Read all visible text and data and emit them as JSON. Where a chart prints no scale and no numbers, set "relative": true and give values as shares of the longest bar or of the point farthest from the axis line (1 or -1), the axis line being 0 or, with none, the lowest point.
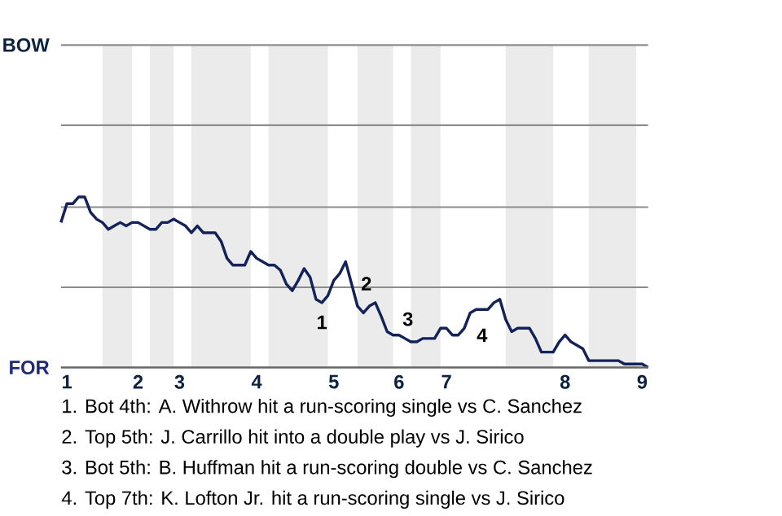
{
  "chart_data": {
    "type": "line",
    "categories": [
      null,
      "1",
      null,
      null,
      null,
      null,
      null,
      null,
      null,
      null,
      null,
      null,
      null,
      "2",
      null,
      null,
      null,
      null,
      null,
      null,
      "3",
      null,
      null,
      null,
      null,
      null,
      null,
      null,
      null,
      null,
      null,
      null,
      null,
      "4",
      null,
      null,
      null,
      null,
      null,
      null,
      null,
      null,
      null,
      null,
      null,
      null,
      "5",
      null,
      null,
      null,
      null,
      null,
      null,
      null,
      null,
      null,
      null,
      "6",
      null,
      null,
      null,
      null,
      null,
      null,
      null,
      "7",
      null,
      null,
      null,
      null,
      null,
      null,
      null,
      null,
      null,
      null,
      null,
      null,
      null,
      null,
      null,
      null,
      null,
      null,
      null,
      "8",
      null,
      null,
      null,
      null,
      null,
      null,
      null,
      null,
      null,
      null,
      null,
      null,
      "9",
      null
    ],
    "series": [
      {
        "color": "#14225a",
        "values": [
          0.85,
          0.96,
          0.96,
          1,
          1,
          0.91,
          0.87,
          0.85,
          0.81,
          0.83,
          0.85,
          0.83,
          0.85,
          0.85,
          0.83,
          0.81,
          0.81,
          0.85,
          0.85,
          0.87,
          0.85,
          0.83,
          0.79,
          0.83,
          0.79,
          0.79,
          0.79,
          0.74,
          0.64,
          0.6,
          0.6,
          0.6,
          0.68,
          0.64,
          0.62,
          0.6,
          0.6,
          0.57,
          0.49,
          0.45,
          0.51,
          0.58,
          0.53,
          0.4,
          0.38,
          0.42,
          0.51,
          0.55,
          0.62,
          0.49,
          0.36,
          0.32,
          0.36,
          0.38,
          0.3,
          0.21,
          0.19,
          0.19,
          0.17,
          0.15,
          0.15,
          0.17,
          0.17,
          0.17,
          0.23,
          0.23,
          0.19,
          0.19,
          0.23,
          0.32,
          0.34,
          0.34,
          0.34,
          0.38,
          0.4,
          0.28,
          0.21,
          0.23,
          0.23,
          0.23,
          0.17,
          0.09,
          0.09,
          0.09,
          0.15,
          0.19,
          0.15,
          0.13,
          0.11,
          0.04,
          0.04,
          0.04,
          0.04,
          0.04,
          0.04,
          0.02,
          0.02,
          0.02,
          0.02,
          0
        ]
      }
    ],
    "relative": true,
    "ref_lines": [
      {
        "axis": "y",
        "value": 0.47,
        "color": "#8c8c8c"
      },
      {
        "axis": "y",
        "value": 0.94,
        "color": "#8c8c8c"
      },
      {
        "axis": "y",
        "value": 1.42,
        "color": "#8c8c8c"
      }
    ],
    "annotations": [
      "BOW",
      "FOR",
      "1",
      "2",
      "3",
      "4",
      "1. Bot 4th: A. Withrow hit a run-scoring single vs C. Sanchez",
      "2. Top 5th: J. Carrillo hit into a double play vs J. Sirico",
      "3. Bot 5th: B. Huffman hit a run-scoring double vs C. Sanchez",
      "4. Top 7th: K. Lofton Jr. hit a run-scoring single vs J. Sirico"
    ]
  }
}
